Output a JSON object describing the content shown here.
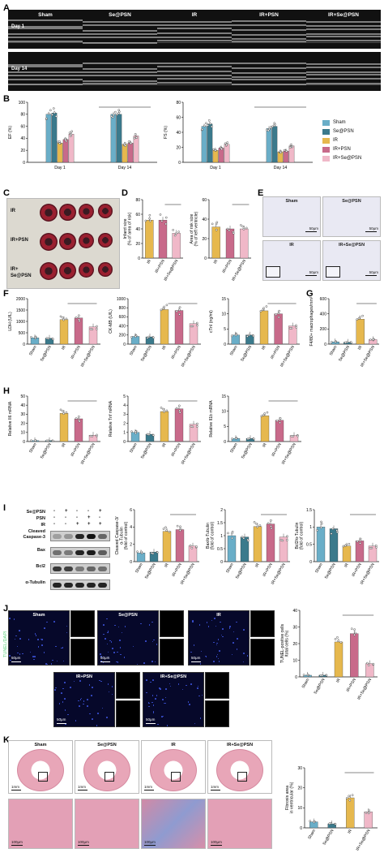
{
  "panels": {
    "A": {
      "label": "A",
      "groups": [
        "Sham",
        "Se@PSN",
        "IR",
        "IR+PSN",
        "IR+Se@PSN"
      ],
      "rows": [
        "Day 1",
        "Day 14"
      ]
    },
    "B": {
      "label": "B"
    },
    "C": {
      "label": "C",
      "rows": [
        "IR",
        "IR+PSN",
        "IR+\nSe@PSN"
      ]
    },
    "D": {
      "label": "D"
    },
    "E": {
      "label": "E",
      "titles": [
        "Sham",
        "Se@PSN",
        "IR",
        "IR+Se@PSN"
      ],
      "scale": "50μm"
    },
    "F": {
      "label": "F"
    },
    "G": {
      "label": "G"
    },
    "H": {
      "label": "H"
    },
    "I": {
      "label": "I",
      "treatments": [
        {
          "name": "Se@PSN",
          "signs": [
            "-",
            "+",
            "-",
            "-",
            "+"
          ]
        },
        {
          "name": "PSN",
          "signs": [
            "-",
            "-",
            "-",
            "+",
            "-"
          ]
        },
        {
          "name": "IR",
          "signs": [
            "-",
            "-",
            "+",
            "+",
            "+"
          ]
        }
      ],
      "blots": [
        "Cleaved\nCaspase-3",
        "Bax",
        "Bcl2",
        "α-Tubulin"
      ]
    },
    "J": {
      "label": "J",
      "stain": "TUNEL/DAPI",
      "titles": [
        "Sham",
        "Se@PSN",
        "IR",
        "IR+PSN",
        "IR+Se@PSN"
      ],
      "scale": "50μm"
    },
    "K": {
      "label": "K",
      "titles": [
        "Sham",
        "Se@PSN",
        "IR",
        "IR+Se@PSN"
      ],
      "scale_top": "1mm",
      "scale_bottom": "100μm"
    }
  },
  "legend": [
    {
      "name": "Sham",
      "color": "#6aaec8"
    },
    {
      "name": "Se@PSN",
      "color": "#3b7a8c"
    },
    {
      "name": "IR",
      "color": "#e6b84e"
    },
    {
      "name": "IR+PSN",
      "color": "#c86a8a"
    },
    {
      "name": "IR+Se@PSN",
      "color": "#f0b8c8"
    }
  ],
  "chart_data": [
    {
      "id": "B-EF",
      "type": "bar",
      "ylabel": "EF (%)",
      "ylim": [
        0,
        100
      ],
      "yticks": [
        0,
        20,
        40,
        60,
        80,
        100
      ],
      "categories": [
        "Day 1",
        "Day 14"
      ],
      "series": [
        {
          "name": "Sham",
          "values": [
            80,
            80
          ]
        },
        {
          "name": "Se@PSN",
          "values": [
            82,
            80
          ]
        },
        {
          "name": "IR",
          "values": [
            32,
            30
          ]
        },
        {
          "name": "IR+PSN",
          "values": [
            38,
            32
          ]
        },
        {
          "name": "IR+Se@PSN",
          "values": [
            47,
            44
          ]
        }
      ]
    },
    {
      "id": "B-FS",
      "type": "bar",
      "ylabel": "FS (%)",
      "ylim": [
        0,
        80
      ],
      "yticks": [
        0,
        20,
        40,
        60,
        80
      ],
      "categories": [
        "Day 1",
        "Day 14"
      ],
      "series": [
        {
          "name": "Sham",
          "values": [
            48,
            45
          ]
        },
        {
          "name": "Se@PSN",
          "values": [
            51,
            48
          ]
        },
        {
          "name": "IR",
          "values": [
            16,
            14
          ]
        },
        {
          "name": "IR+PSN",
          "values": [
            19,
            15
          ]
        },
        {
          "name": "IR+Se@PSN",
          "values": [
            24,
            22
          ]
        }
      ]
    },
    {
      "id": "D-infarct",
      "type": "bar",
      "ylabel": "Infarct size\n(% of area of risk)",
      "ylim": [
        0,
        80
      ],
      "yticks": [
        0,
        20,
        40,
        60,
        80
      ],
      "categories": [
        "IR",
        "IR+PSN",
        "IR+Se@PSN"
      ],
      "values": [
        52,
        52,
        34
      ],
      "colors": [
        "#e6b84e",
        "#c86a8a",
        "#f0b8c8"
      ]
    },
    {
      "id": "D-aar",
      "type": "bar",
      "ylabel": "Area of risk size\n(% of left ventricle)",
      "ylim": [
        0,
        60
      ],
      "yticks": [
        0,
        20,
        40,
        60
      ],
      "categories": [
        "IR",
        "IR+PSN",
        "IR+Se@PSN"
      ],
      "values": [
        32,
        30,
        30
      ],
      "colors": [
        "#e6b84e",
        "#c86a8a",
        "#f0b8c8"
      ]
    },
    {
      "id": "F-LDH",
      "type": "bar",
      "ylabel": "LDH (U/L)",
      "ylim": [
        0,
        2000
      ],
      "yticks": [
        0,
        500,
        1000,
        1500,
        2000
      ],
      "categories": [
        "Sham",
        "Se@PSN",
        "IR",
        "IR+PSN",
        "IR+Se@PSN"
      ],
      "values": [
        280,
        260,
        1080,
        1150,
        760
      ]
    },
    {
      "id": "F-CKMB",
      "type": "bar",
      "ylabel": "CK-MB (U/L)",
      "ylim": [
        0,
        1000
      ],
      "yticks": [
        0,
        200,
        400,
        600,
        800,
        1000
      ],
      "categories": [
        "Sham",
        "Se@PSN",
        "IR",
        "IR+PSN",
        "IR+Se@PSN"
      ],
      "values": [
        170,
        160,
        760,
        740,
        450
      ]
    },
    {
      "id": "F-cTnI",
      "type": "bar",
      "ylabel": "cTnI (ng/ml)",
      "ylim": [
        0,
        15
      ],
      "yticks": [
        0,
        5,
        10,
        15
      ],
      "categories": [
        "Sham",
        "Se@PSN",
        "IR",
        "IR+PSN",
        "IR+Se@PSN"
      ],
      "values": [
        3,
        3,
        11,
        10,
        6
      ]
    },
    {
      "id": "G-F480",
      "type": "bar",
      "ylabel": "F4/80+ macrophages/mm²",
      "ylim": [
        0,
        600
      ],
      "yticks": [
        0,
        200,
        400,
        600
      ],
      "categories": [
        "Sham",
        "Se@PSN",
        "IR",
        "IR+Se@PSN"
      ],
      "values": [
        30,
        25,
        330,
        60
      ],
      "colors": [
        "#6aaec8",
        "#3b7a8c",
        "#e6b84e",
        "#f0b8c8"
      ]
    },
    {
      "id": "H-Il6",
      "type": "bar",
      "ylabel": "Relative Il6 mRNA",
      "ylim": [
        0,
        50
      ],
      "yticks": [
        0,
        10,
        20,
        30,
        40,
        50
      ],
      "categories": [
        "Sham",
        "Se@PSN",
        "IR",
        "IR+PSN",
        "IR+Se@PSN"
      ],
      "values": [
        1,
        1,
        31,
        25,
        7
      ]
    },
    {
      "id": "H-Tnf",
      "type": "bar",
      "ylabel": "Relative Tnf mRNA",
      "ylim": [
        0,
        5
      ],
      "yticks": [
        0,
        1,
        2,
        3,
        4,
        5
      ],
      "categories": [
        "Sham",
        "Se@PSN",
        "IR",
        "IR+PSN",
        "IR+Se@PSN"
      ],
      "values": [
        1,
        0.8,
        3.3,
        3.6,
        1.9
      ]
    },
    {
      "id": "H-Il1b",
      "type": "bar",
      "ylabel": "Relative Il1b mRNA",
      "ylim": [
        0,
        15
      ],
      "yticks": [
        0,
        5,
        10,
        15
      ],
      "categories": [
        "Sham",
        "Se@PSN",
        "IR",
        "IR+PSN",
        "IR+Se@PSN"
      ],
      "values": [
        1,
        1,
        8.5,
        7,
        2
      ]
    },
    {
      "id": "I-Casp3",
      "type": "bar",
      "ylabel": "Cleaved Caspase-3/\nα-Tubulin\n(fold of control)",
      "ylim": [
        0,
        6
      ],
      "yticks": [
        0,
        2,
        4,
        6
      ],
      "categories": [
        "Sham",
        "Se@PSN",
        "IR",
        "IR+PSN",
        "IR+Se@PSN"
      ],
      "values": [
        1,
        1.1,
        3.5,
        3.7,
        1.8
      ]
    },
    {
      "id": "I-Bax",
      "type": "bar",
      "ylabel": "Bax/α-Tubulin\n(fold of control)",
      "ylim": [
        0,
        2.0
      ],
      "yticks": [
        0,
        0.5,
        1.0,
        1.5,
        2.0
      ],
      "categories": [
        "Sham",
        "Se@PSN",
        "IR",
        "IR+PSN",
        "IR+Se@PSN"
      ],
      "values": [
        1,
        0.95,
        1.35,
        1.45,
        0.95
      ]
    },
    {
      "id": "I-Bcl2",
      "type": "bar",
      "ylabel": "Bcl2/α-Tubulin\n(fold of control)",
      "ylim": [
        0,
        1.5
      ],
      "yticks": [
        0,
        0.5,
        1.0,
        1.5
      ],
      "categories": [
        "Sham",
        "Se@PSN",
        "IR",
        "IR+PSN",
        "IR+Se@PSN"
      ],
      "values": [
        1,
        0.95,
        0.45,
        0.6,
        0.45
      ]
    },
    {
      "id": "J-TUNEL",
      "type": "bar",
      "ylabel": "TUNEL-positive cells\n/total cells (%)",
      "ylim": [
        0,
        40
      ],
      "yticks": [
        0,
        10,
        20,
        30,
        40
      ],
      "categories": [
        "Sham",
        "Se@PSN",
        "IR",
        "IR+PSN",
        "IR+Se@PSN"
      ],
      "values": [
        1,
        1,
        21,
        26,
        8
      ]
    },
    {
      "id": "K-fibrosis",
      "type": "bar",
      "ylabel": "Fibrosis area\nin ventricular (%)",
      "ylim": [
        0,
        30
      ],
      "yticks": [
        0,
        10,
        20,
        30
      ],
      "categories": [
        "Sham",
        "Se@PSN",
        "IR",
        "IR+Se@PSN"
      ],
      "values": [
        3,
        2,
        15,
        8
      ],
      "colors": [
        "#6aaec8",
        "#3b7a8c",
        "#e6b84e",
        "#f0b8c8"
      ]
    }
  ]
}
